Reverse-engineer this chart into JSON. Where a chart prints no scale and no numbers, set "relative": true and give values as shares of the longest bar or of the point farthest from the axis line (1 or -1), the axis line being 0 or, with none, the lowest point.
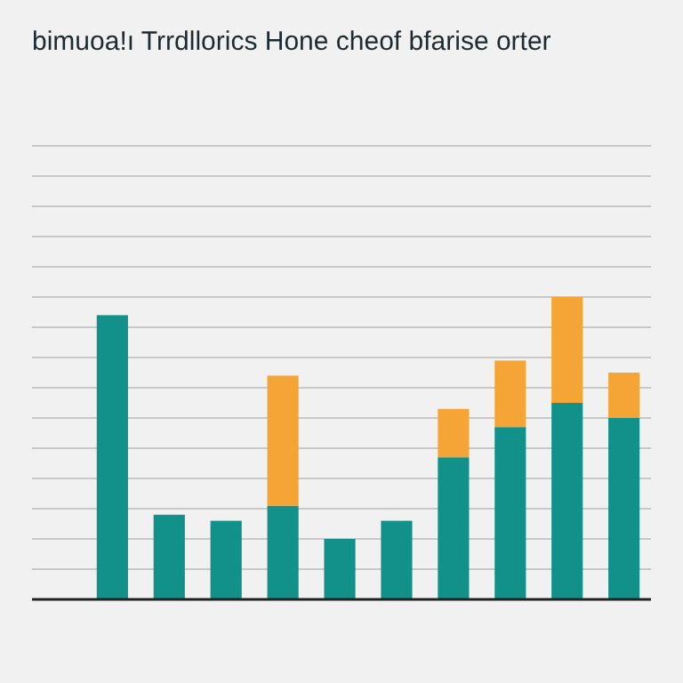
{
  "chart_data": {
    "type": "bar",
    "title": "bimuoa!ı Trrdllorics Hone cheof bfarise orter",
    "categories": [
      null,
      null,
      null,
      null,
      null,
      null,
      null,
      null,
      null,
      null
    ],
    "stacked": true,
    "relative": true,
    "grid": "y",
    "series": [
      {
        "color": "#12918a",
        "values": [
          0.94,
          0.28,
          0.26,
          0.31,
          0.2,
          0.26,
          0.47,
          0.57,
          0.65,
          0.6
        ]
      },
      {
        "color": "#f5a535",
        "values": [
          0,
          0,
          0,
          0.43,
          0,
          0,
          0.16,
          0.22,
          0.35,
          0.15
        ]
      }
    ]
  }
}
